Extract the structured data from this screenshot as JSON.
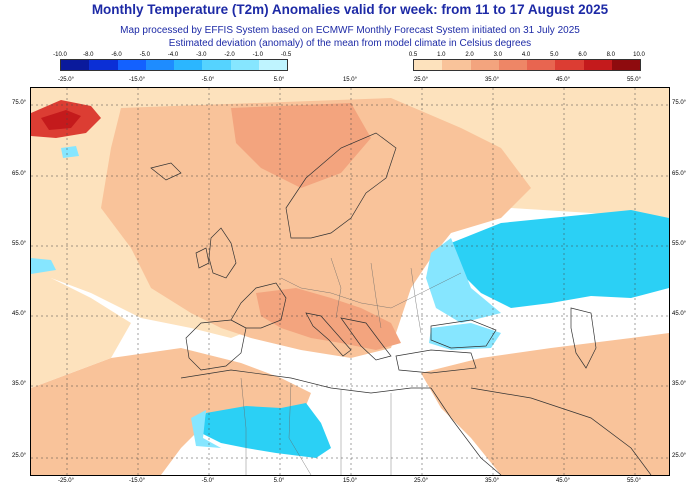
{
  "header": {
    "title": "Monthly Temperature (T2m) Anomalies valid for week: from 11 to 17 August 2025",
    "subtitle_1": "Map processed by EFFIS System based on ECMWF Monthly Forecast System initiated on 31 July 2025",
    "subtitle_2": "Estimated deviation (anomaly) of the mean from model climate in Celsius degrees"
  },
  "legend_cold": {
    "labels": [
      "-10.0",
      "-8.0",
      "-6.0",
      "-5.0",
      "-4.0",
      "-3.0",
      "-2.0",
      "-1.0",
      "-0.5"
    ],
    "colors": [
      "#0a1a9c",
      "#0b2fd6",
      "#1361ff",
      "#1e8cff",
      "#2bb6ff",
      "#55d3ff",
      "#86e6ff",
      "#bff4ff"
    ]
  },
  "legend_warm": {
    "labels": [
      "0.5",
      "1.0",
      "2.0",
      "3.0",
      "4.0",
      "5.0",
      "6.0",
      "8.0",
      "10.0"
    ],
    "colors": [
      "#fde2bd",
      "#f9c39a",
      "#f3a47e",
      "#ee8666",
      "#e86550",
      "#dc3d33",
      "#c41a1c",
      "#8e0b0e"
    ]
  },
  "axes": {
    "top_lon": [
      "-25.0°",
      "-15.0°",
      "-5.0°",
      "5.0°",
      "15.0°",
      "25.0°",
      "35.0°",
      "45.0°",
      "55.0°"
    ],
    "bottom_lon": [
      "-25.0°",
      "-15.0°",
      "-5.0°",
      "5.0°",
      "15.0°",
      "25.0°",
      "35.0°",
      "45.0°",
      "55.0°"
    ],
    "lat": [
      "75.0°",
      "65.0°",
      "55.0°",
      "45.0°",
      "35.0°",
      "25.0°"
    ]
  },
  "colors": {
    "sea_neutral": "#ffffff",
    "warm_light": "#fde2bd",
    "warm_mid": "#f9c39a",
    "warm_strong": "#f3a47e",
    "cold_light": "#86e6ff",
    "cold_mid": "#2bd0f5"
  }
}
